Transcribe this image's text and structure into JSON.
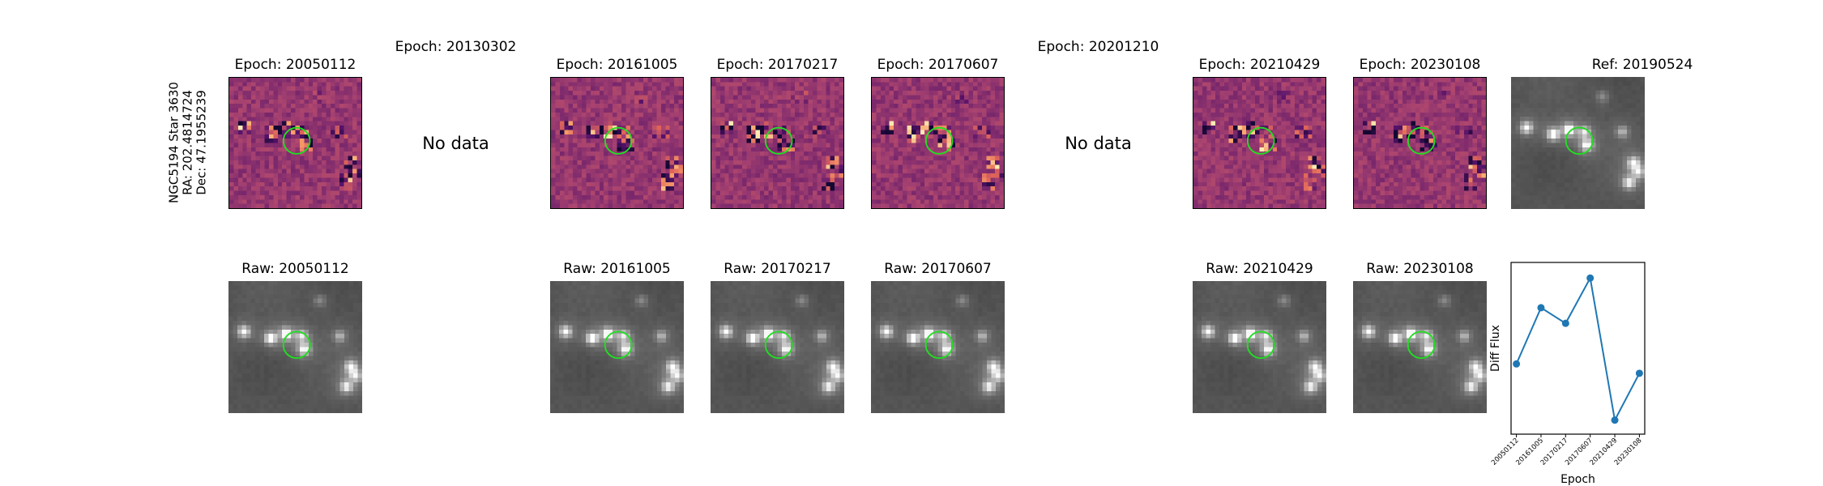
{
  "target": {
    "name": "NGC5194 Star 3630",
    "ra": "RA: 202.4814724",
    "dec": "Dec: 47.1955239"
  },
  "no_data_label": "No data",
  "epochs": [
    {
      "diff_title": "Epoch: 20050112",
      "raw_title": "Raw: 20050112",
      "has_data": true
    },
    {
      "diff_title": "Epoch: 20130302",
      "raw_title": "",
      "has_data": false
    },
    {
      "diff_title": "Epoch: 20161005",
      "raw_title": "Raw: 20161005",
      "has_data": true
    },
    {
      "diff_title": "Epoch: 20170217",
      "raw_title": "Raw: 20170217",
      "has_data": true
    },
    {
      "diff_title": "Epoch: 20170607",
      "raw_title": "Raw: 20170607",
      "has_data": true
    },
    {
      "diff_title": "Epoch: 20201210",
      "raw_title": "",
      "has_data": false
    },
    {
      "diff_title": "Epoch: 20210429",
      "raw_title": "Raw: 20210429",
      "has_data": true
    },
    {
      "diff_title": "Epoch: 20230108",
      "raw_title": "Raw: 20230108",
      "has_data": true
    }
  ],
  "reference": {
    "title": "Ref: 20190524"
  },
  "colors": {
    "diff_base": "#a8446f",
    "aperture": "#22dd22",
    "raw_background": "#6e6e6e",
    "series": "#1f77b4"
  },
  "chart_data": {
    "type": "line",
    "title": "",
    "xlabel": "Epoch",
    "ylabel": "Diff Flux",
    "categories": [
      "20050112",
      "20161005",
      "20170217",
      "20170607",
      "20210429",
      "20230108"
    ],
    "series": [
      {
        "values": [
          0.45,
          0.81,
          0.71,
          1.0,
          0.09,
          0.39
        ]
      }
    ],
    "ylim": [
      0.0,
      1.1
    ],
    "yticks_shown": false,
    "grid": false,
    "legend": "none"
  }
}
